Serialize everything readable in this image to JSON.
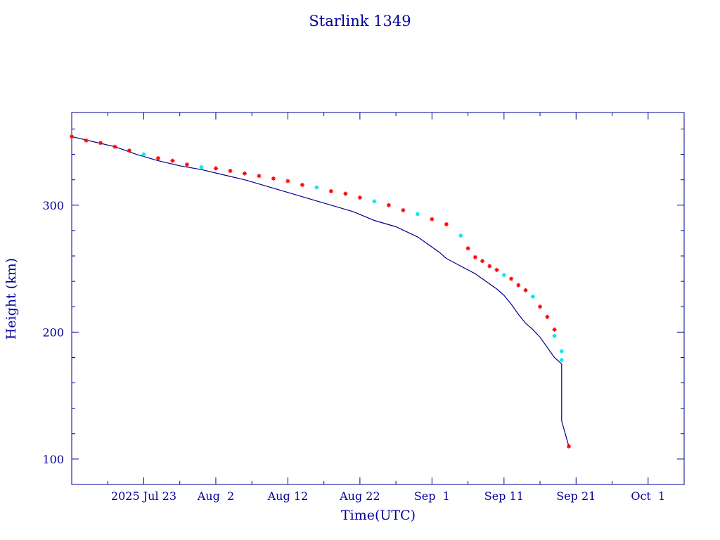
{
  "chart_data": {
    "type": "line",
    "title": "Starlink 1349",
    "xlabel": "Time(UTC)",
    "ylabel": "Height (km)",
    "x_tick_labels": [
      "2025 Jul 23",
      "Aug  2",
      "Aug 12",
      "Aug 22",
      "Sep  1",
      "Sep 11",
      "Sep 21",
      "Oct  1"
    ],
    "x_ticks": [
      "2025-07-23",
      "2025-08-02",
      "2025-08-12",
      "2025-08-22",
      "2025-09-01",
      "2025-09-11",
      "2025-09-21",
      "2025-10-01"
    ],
    "y_tick_labels": [
      "100",
      "200",
      "300"
    ],
    "y_ticks": [
      100,
      200,
      300
    ],
    "xlim": [
      "2025-07-13",
      "2025-10-06"
    ],
    "ylim": [
      80,
      373
    ],
    "grid": false,
    "colors": {
      "axes": "#00009a",
      "text": "#00009a",
      "line": "#00008b",
      "marker_primary": "#ff0000",
      "marker_secondary": "#00e5ee"
    },
    "series": [
      {
        "x": [
          "2025-07-13",
          "2025-07-16",
          "2025-07-19",
          "2025-07-22",
          "2025-07-25",
          "2025-07-28",
          "2025-07-31",
          "2025-08-03",
          "2025-08-06",
          "2025-08-09",
          "2025-08-12",
          "2025-08-15",
          "2025-08-18",
          "2025-08-21",
          "2025-08-24",
          "2025-08-27",
          "2025-08-30",
          "2025-09-02",
          "2025-09-03",
          "2025-09-04",
          "2025-09-05",
          "2025-09-06",
          "2025-09-07",
          "2025-09-08",
          "2025-09-09",
          "2025-09-10",
          "2025-09-11",
          "2025-09-12",
          "2025-09-13",
          "2025-09-14",
          "2025-09-15",
          "2025-09-16",
          "2025-09-17",
          "2025-09-18",
          "2025-09-19",
          "2025-09-19",
          "2025-09-19",
          "2025-09-20"
        ],
        "y": [
          354,
          350,
          346,
          340,
          335,
          331,
          328,
          324,
          320,
          315,
          310,
          305,
          300,
          295,
          288,
          283,
          275,
          263,
          258,
          255,
          252,
          249,
          246,
          242,
          238,
          234,
          229,
          222,
          214,
          207,
          202,
          196,
          188,
          180,
          175,
          160,
          130,
          110
        ],
        "markers": [
          {
            "x": "2025-07-13",
            "y": 354,
            "color": "red"
          },
          {
            "x": "2025-07-15",
            "y": 351,
            "color": "red"
          },
          {
            "x": "2025-07-17",
            "y": 349,
            "color": "red"
          },
          {
            "x": "2025-07-19",
            "y": 346,
            "color": "red"
          },
          {
            "x": "2025-07-21",
            "y": 343,
            "color": "red"
          },
          {
            "x": "2025-07-23",
            "y": 340,
            "color": "cyan"
          },
          {
            "x": "2025-07-25",
            "y": 337,
            "color": "red"
          },
          {
            "x": "2025-07-27",
            "y": 335,
            "color": "red"
          },
          {
            "x": "2025-07-29",
            "y": 332,
            "color": "red"
          },
          {
            "x": "2025-07-31",
            "y": 330,
            "color": "cyan"
          },
          {
            "x": "2025-08-02",
            "y": 329,
            "color": "red"
          },
          {
            "x": "2025-08-04",
            "y": 327,
            "color": "red"
          },
          {
            "x": "2025-08-06",
            "y": 325,
            "color": "red"
          },
          {
            "x": "2025-08-08",
            "y": 323,
            "color": "red"
          },
          {
            "x": "2025-08-10",
            "y": 321,
            "color": "red"
          },
          {
            "x": "2025-08-12",
            "y": 319,
            "color": "red"
          },
          {
            "x": "2025-08-14",
            "y": 316,
            "color": "red"
          },
          {
            "x": "2025-08-16",
            "y": 314,
            "color": "cyan"
          },
          {
            "x": "2025-08-18",
            "y": 311,
            "color": "red"
          },
          {
            "x": "2025-08-20",
            "y": 309,
            "color": "red"
          },
          {
            "x": "2025-08-22",
            "y": 306,
            "color": "red"
          },
          {
            "x": "2025-08-24",
            "y": 303,
            "color": "cyan"
          },
          {
            "x": "2025-08-26",
            "y": 300,
            "color": "red"
          },
          {
            "x": "2025-08-28",
            "y": 296,
            "color": "red"
          },
          {
            "x": "2025-08-30",
            "y": 293,
            "color": "cyan"
          },
          {
            "x": "2025-09-01",
            "y": 289,
            "color": "red"
          },
          {
            "x": "2025-09-03",
            "y": 285,
            "color": "red"
          },
          {
            "x": "2025-09-05",
            "y": 276,
            "color": "cyan"
          },
          {
            "x": "2025-09-06",
            "y": 266,
            "color": "red"
          },
          {
            "x": "2025-09-07",
            "y": 259,
            "color": "red"
          },
          {
            "x": "2025-09-08",
            "y": 256,
            "color": "red"
          },
          {
            "x": "2025-09-09",
            "y": 252,
            "color": "red"
          },
          {
            "x": "2025-09-10",
            "y": 249,
            "color": "red"
          },
          {
            "x": "2025-09-11",
            "y": 245,
            "color": "cyan"
          },
          {
            "x": "2025-09-12",
            "y": 242,
            "color": "red"
          },
          {
            "x": "2025-09-13",
            "y": 237,
            "color": "red"
          },
          {
            "x": "2025-09-14",
            "y": 233,
            "color": "red"
          },
          {
            "x": "2025-09-15",
            "y": 228,
            "color": "cyan"
          },
          {
            "x": "2025-09-16",
            "y": 220,
            "color": "red"
          },
          {
            "x": "2025-09-17",
            "y": 212,
            "color": "red"
          },
          {
            "x": "2025-09-18",
            "y": 197,
            "color": "cyan"
          },
          {
            "x": "2025-09-18",
            "y": 202,
            "color": "red"
          },
          {
            "x": "2025-09-19",
            "y": 185,
            "color": "cyan"
          },
          {
            "x": "2025-09-19",
            "y": 178,
            "color": "cyan"
          },
          {
            "x": "2025-09-20",
            "y": 110,
            "color": "red"
          }
        ]
      }
    ]
  }
}
